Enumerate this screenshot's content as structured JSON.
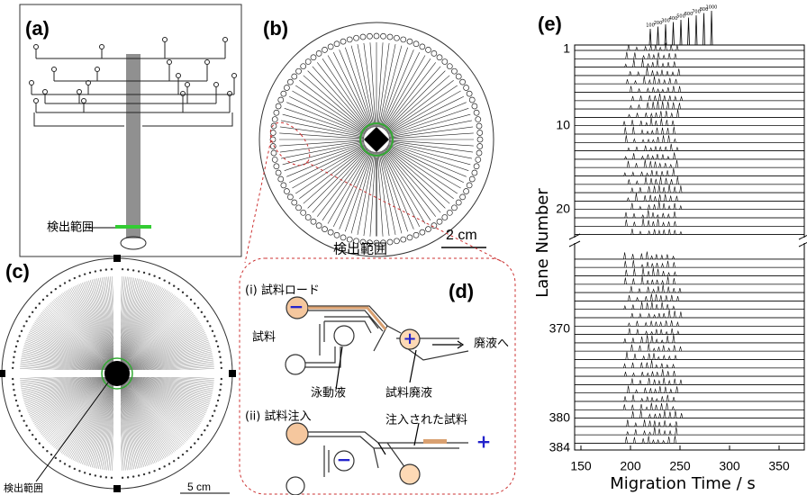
{
  "panels": {
    "a": {
      "label": "(a)",
      "detection": "検出範囲"
    },
    "b": {
      "label": "(b)",
      "detection": "検出範囲",
      "scale": "2 cm"
    },
    "c": {
      "label": "(c)",
      "detection": "検出範囲",
      "scale": "5 cm"
    },
    "d": {
      "label": "(d)",
      "step1": "(i) 試料ロード",
      "sample": "試料",
      "to_waste": "廃液へ",
      "buffer": "泳動液",
      "sample_waste": "試料廃液",
      "step2": "(ii) 試料注入",
      "injected": "注入された試料",
      "minus": "−",
      "plus": "+"
    },
    "e": {
      "label": "(e)",
      "y_label": "Lane Number",
      "x_label": "Migration Time / s",
      "y_ticks": [
        "1",
        "10",
        "20",
        "370",
        "380",
        "384"
      ],
      "x_ticks": [
        "150",
        "200",
        "250",
        "300",
        "350"
      ],
      "peak_labels": [
        "100",
        "200",
        "300",
        "400",
        "500",
        "600",
        "700",
        "800",
        "1000"
      ]
    }
  }
}
